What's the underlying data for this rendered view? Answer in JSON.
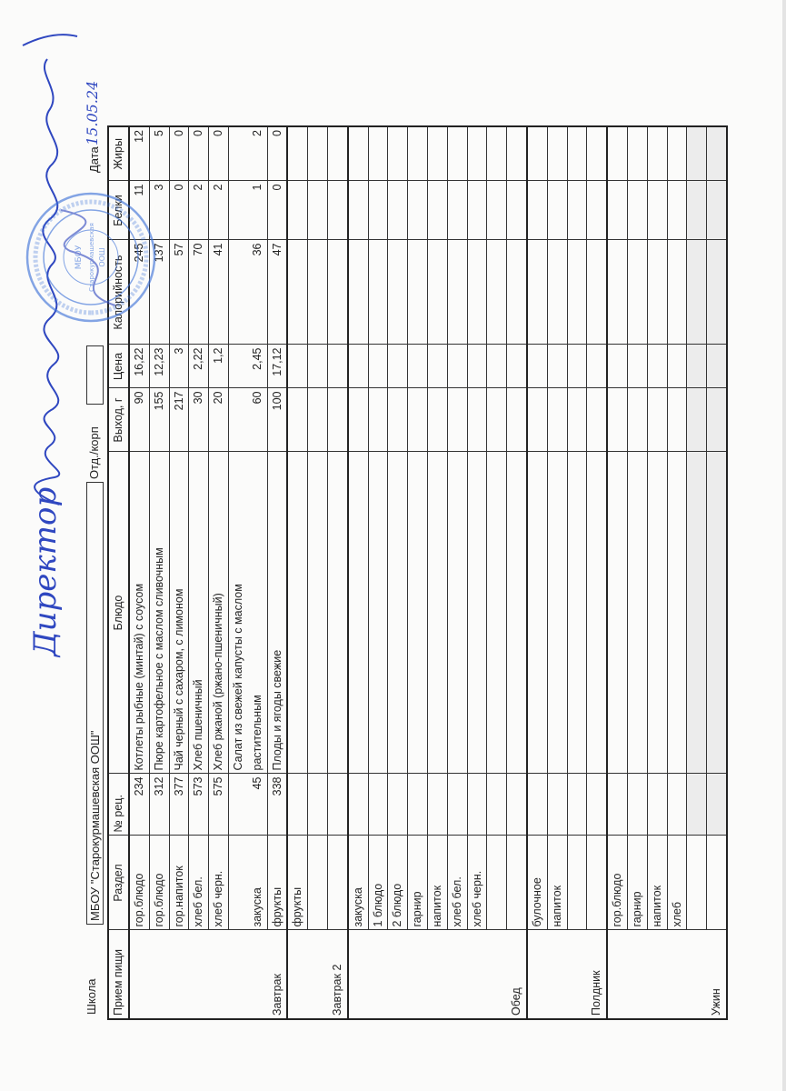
{
  "header": {
    "school_label": "Школа",
    "school_name": "МБОУ \"Старокурмашевская ООШ\"",
    "department_label": "Отд./корп",
    "department_value": "",
    "date_label": "Дата",
    "date_value": "15.05.24"
  },
  "signature": {
    "title": "Директор"
  },
  "stamp": {
    "text": "МБОУ Старокурмашевская ООШ",
    "color": "#3a6fd8"
  },
  "ink_color": "#2f47c0",
  "table": {
    "columns": [
      "Прием пищи",
      "Раздел",
      "№ рец.",
      "Блюдо",
      "Выход, г",
      "Цена",
      "Калорийность",
      "Белки",
      "Жиры"
    ],
    "meals": [
      {
        "name": "Завтрак",
        "rows": [
          {
            "section": "гор.блюдо",
            "recipe": "234",
            "dish": "Котлеты рыбные (минтай) с соусом",
            "yield": "90",
            "price": "16,22",
            "calories": "245",
            "protein": "11",
            "fat": "12"
          },
          {
            "section": "гор.блюдо",
            "recipe": "312",
            "dish": "Пюре картофельное с маслом сливочным",
            "yield": "155",
            "price": "12,23",
            "calories": "137",
            "protein": "3",
            "fat": "5"
          },
          {
            "section": "гор.напиток",
            "recipe": "377",
            "dish": "Чай черный с сахаром, с лимоном",
            "yield": "217",
            "price": "3",
            "calories": "57",
            "protein": "0",
            "fat": "0"
          },
          {
            "section": "хлеб бел.",
            "recipe": "573",
            "dish": "Хлеб пшеничный",
            "yield": "30",
            "price": "2,22",
            "calories": "70",
            "protein": "2",
            "fat": "0"
          },
          {
            "section": "хлеб черн.",
            "recipe": "575",
            "dish": "Хлеб ржаной (ржано-пшеничный)",
            "yield": "20",
            "price": "1,2",
            "calories": "41",
            "protein": "2",
            "fat": "0"
          },
          {
            "section": "закуска",
            "recipe": "45",
            "dish": "Салат из свежей капусты с маслом\nрастительным",
            "yield": "60",
            "price": "2,45",
            "calories": "36",
            "protein": "1",
            "fat": "2"
          },
          {
            "section": "фрукты",
            "recipe": "338",
            "dish": "Плоды и ягоды свежие",
            "yield": "100",
            "price": "17,12",
            "calories": "47",
            "protein": "0",
            "fat": "0"
          }
        ]
      },
      {
        "name": "Завтрак 2",
        "rows": [
          {
            "section": "фрукты"
          },
          {
            "section": ""
          },
          {
            "section": ""
          }
        ]
      },
      {
        "name": "Обед",
        "rows": [
          {
            "section": "закуска"
          },
          {
            "section": "1 блюдо"
          },
          {
            "section": "2 блюдо"
          },
          {
            "section": "гарнир"
          },
          {
            "section": "напиток"
          },
          {
            "section": "хлеб бел."
          },
          {
            "section": "хлеб черн."
          },
          {
            "section": ""
          },
          {
            "section": ""
          }
        ]
      },
      {
        "name": "Полдник",
        "rows": [
          {
            "section": "булочное"
          },
          {
            "section": "напиток"
          },
          {
            "section": ""
          },
          {
            "section": ""
          }
        ]
      },
      {
        "name": "Ужин",
        "rows": [
          {
            "section": "гор.блюдо"
          },
          {
            "section": "гарнир"
          },
          {
            "section": "напиток"
          },
          {
            "section": "хлеб"
          },
          {
            "section": ""
          },
          {
            "section": ""
          }
        ]
      }
    ]
  }
}
